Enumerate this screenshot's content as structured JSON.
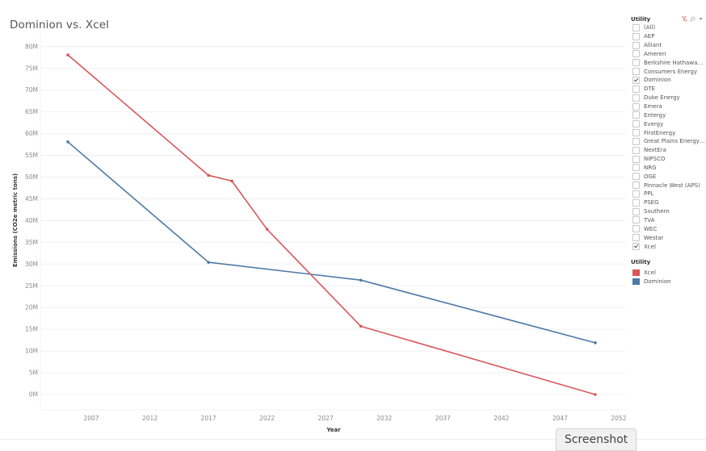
{
  "title": "Dominion vs. Xcel",
  "filter": {
    "title": "Utility",
    "tools": [
      "clear-filter-icon",
      "search-icon",
      "dropdown-icon"
    ],
    "items": [
      {
        "label": "(All)",
        "checked": false
      },
      {
        "label": "AEP",
        "checked": false
      },
      {
        "label": "Alliant",
        "checked": false
      },
      {
        "label": "Ameren",
        "checked": false
      },
      {
        "label": "Berkshire Hathaway ...",
        "checked": false
      },
      {
        "label": "Consumers Energy",
        "checked": false
      },
      {
        "label": "Dominion",
        "checked": true
      },
      {
        "label": "DTE",
        "checked": false
      },
      {
        "label": "Duke Energy",
        "checked": false
      },
      {
        "label": "Emera",
        "checked": false
      },
      {
        "label": "Entergy",
        "checked": false
      },
      {
        "label": "Evergy",
        "checked": false
      },
      {
        "label": "FirstEnergy",
        "checked": false
      },
      {
        "label": "Great Plains Energy (...",
        "checked": false
      },
      {
        "label": "NextEra",
        "checked": false
      },
      {
        "label": "NIPSCO",
        "checked": false
      },
      {
        "label": "NRG",
        "checked": false
      },
      {
        "label": "OGE",
        "checked": false
      },
      {
        "label": "Pinnacle West (APS)",
        "checked": false
      },
      {
        "label": "PPL",
        "checked": false
      },
      {
        "label": "PSEG",
        "checked": false
      },
      {
        "label": "Southern",
        "checked": false
      },
      {
        "label": "TVA",
        "checked": false
      },
      {
        "label": "WEC",
        "checked": false
      },
      {
        "label": "Westar",
        "checked": false
      },
      {
        "label": "Xcel",
        "checked": true
      }
    ]
  },
  "legend": {
    "title": "Utility",
    "items": [
      {
        "label": "Xcel",
        "color": "#d9565a"
      },
      {
        "label": "Dominion",
        "color": "#4e79a7"
      }
    ]
  },
  "screenshot_button": "Screenshot",
  "chart_data": {
    "type": "line",
    "title": "Dominion vs. Xcel",
    "xlabel": "Year",
    "ylabel": "Emissions (CO2e metric tons)",
    "xlim": [
      2003,
      2053
    ],
    "ylim": [
      -6000000,
      80000000
    ],
    "x_ticks": [
      2007,
      2012,
      2017,
      2022,
      2027,
      2032,
      2037,
      2042,
      2047,
      2052
    ],
    "y_ticks": [
      "0M",
      "5M",
      "10M",
      "15M",
      "20M",
      "25M",
      "30M",
      "35M",
      "40M",
      "45M",
      "50M",
      "55M",
      "60M",
      "65M",
      "70M",
      "75M",
      "80M"
    ],
    "grid": true,
    "legend_position": "right",
    "series": [
      {
        "name": "Xcel",
        "color": "#d9565a",
        "x": [
          2005,
          2017,
          2019,
          2022,
          2030,
          2050
        ],
        "values": [
          78100000,
          50400000,
          49100000,
          38000000,
          15700000,
          0
        ]
      },
      {
        "name": "Dominion",
        "color": "#4e79a7",
        "x": [
          2005,
          2017,
          2030,
          2050
        ],
        "values": [
          58100000,
          30400000,
          26300000,
          11900000
        ]
      }
    ]
  }
}
